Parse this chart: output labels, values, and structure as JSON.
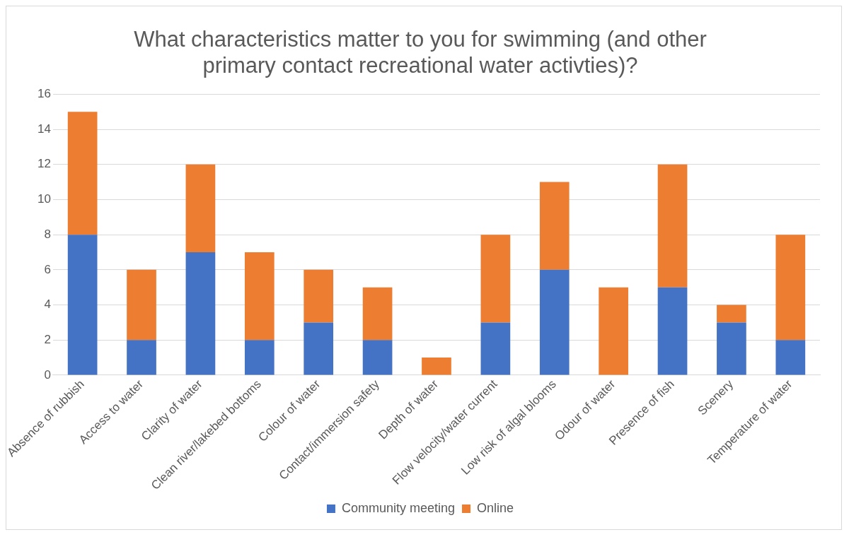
{
  "chart_data": {
    "type": "bar",
    "title": "What characteristics matter to you for swimming (and other primary contact recreational water activties)?",
    "categories": [
      "Absence of rubbish",
      "Access to water",
      "Clarity of water",
      "Clean river/lakebed bottoms",
      "Colour of water",
      "Contact/immersion safety",
      "Depth of water",
      "Flow velocity/water current",
      "Low risk of algal blooms",
      "Odour of water",
      "Presence of fish",
      "Scenery",
      "Temperature of water"
    ],
    "series": [
      {
        "name": "Community meeting",
        "color": "#4472c4",
        "values": [
          8,
          2,
          7,
          2,
          3,
          2,
          0,
          3,
          6,
          0,
          5,
          3,
          2
        ]
      },
      {
        "name": "Online",
        "color": "#ed7d31",
        "values": [
          7,
          4,
          5,
          5,
          3,
          3,
          1,
          5,
          5,
          5,
          7,
          1,
          6
        ]
      }
    ],
    "stacked": true,
    "ylim": [
      0,
      16
    ],
    "yticks": [
      0,
      2,
      4,
      6,
      8,
      10,
      12,
      14,
      16
    ],
    "grid": "y",
    "legend": "bottom"
  }
}
